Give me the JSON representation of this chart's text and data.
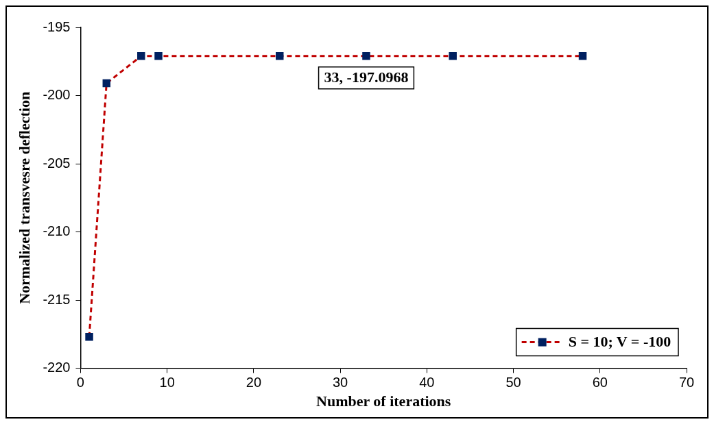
{
  "chart_data": {
    "type": "line",
    "xlabel": "Number of iterations",
    "ylabel": "Normalized transvesre deflection",
    "xlim": [
      0,
      70
    ],
    "xticks": [
      0,
      10,
      20,
      30,
      40,
      50,
      60,
      70
    ],
    "ylim": [
      -220,
      -195
    ],
    "yticks": [
      -220,
      -215,
      -210,
      -205,
      -200,
      -195
    ],
    "series": [
      {
        "name": "S = 10; V = -100",
        "color": "#c00000",
        "x": [
          1,
          3,
          7,
          9,
          23,
          33,
          43,
          58
        ],
        "values": [
          -217.7,
          -199.1,
          -197.1,
          -197.1,
          -197.1,
          -197.0968,
          -197.1,
          -197.1
        ]
      }
    ],
    "annotations": [
      {
        "text": "33, -197.0968",
        "x": 33,
        "y": -197.0968
      }
    ],
    "grid": false,
    "legend": "bottom right",
    "marker": "square",
    "line_style": "dashed"
  }
}
